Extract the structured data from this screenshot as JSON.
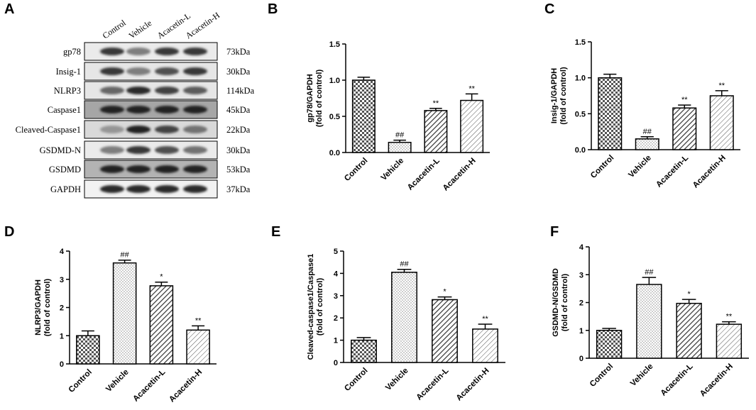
{
  "figure": {
    "panels": [
      "A",
      "B",
      "C",
      "D",
      "E",
      "F"
    ]
  },
  "western_blot": {
    "lanes": [
      "Control",
      "Vehicle",
      "Acacetin-L",
      "Acacetin-H"
    ],
    "rows": [
      {
        "protein": "gp78",
        "kda": "73kDa",
        "intensity": [
          0.85,
          0.55,
          0.85,
          0.85
        ],
        "bg": 0.08
      },
      {
        "protein": "Insig-1",
        "kda": "30kDa",
        "intensity": [
          0.85,
          0.55,
          0.75,
          0.85
        ],
        "bg": 0.1
      },
      {
        "protein": "NLRP3",
        "kda": "114kDa",
        "intensity": [
          0.65,
          0.9,
          0.8,
          0.7
        ],
        "bg": 0.1
      },
      {
        "protein": "Caspase1",
        "kda": "45kDa",
        "intensity": [
          0.95,
          0.95,
          0.95,
          0.95
        ],
        "bg": 0.35
      },
      {
        "protein": "Cleaved-Caspase1",
        "kda": "22kDa",
        "intensity": [
          0.45,
          0.95,
          0.8,
          0.6
        ],
        "bg": 0.15
      },
      {
        "protein": "GSDMD-N",
        "kda": "30kDa",
        "intensity": [
          0.55,
          0.85,
          0.75,
          0.6
        ],
        "bg": 0.08
      },
      {
        "protein": "GSDMD",
        "kda": "53kDa",
        "intensity": [
          0.95,
          0.95,
          0.95,
          0.95
        ],
        "bg": 0.3
      },
      {
        "protein": "GAPDH",
        "kda": "37kDa",
        "intensity": [
          0.9,
          0.9,
          0.9,
          0.9
        ],
        "bg": 0.05
      }
    ]
  },
  "chart_data": [
    {
      "panel": "B",
      "type": "bar",
      "categories": [
        "Control",
        "Vehicle",
        "Acacetin-L",
        "Acacetin-H"
      ],
      "values": [
        1.0,
        0.14,
        0.58,
        0.72
      ],
      "errors": [
        0.04,
        0.03,
        0.03,
        0.09
      ],
      "significance": [
        "",
        "##",
        "**",
        "**"
      ],
      "ylabel": [
        "gp78/GAPDH",
        "(fold of control)"
      ],
      "ylim": [
        0,
        1.5
      ],
      "yticks": [
        "0.0",
        "0.5",
        "1.0",
        "1.5"
      ]
    },
    {
      "panel": "C",
      "type": "bar",
      "categories": [
        "Control",
        "Vehicle",
        "Acacetin-L",
        "Acacetin-H"
      ],
      "values": [
        1.0,
        0.15,
        0.58,
        0.75
      ],
      "errors": [
        0.05,
        0.03,
        0.04,
        0.07
      ],
      "significance": [
        "",
        "##",
        "**",
        "**"
      ],
      "ylabel": [
        "Insig-1/GAPDH",
        "(fold of control)"
      ],
      "ylim": [
        0,
        1.5
      ],
      "yticks": [
        "0.0",
        "0.5",
        "1.0",
        "1.5"
      ]
    },
    {
      "panel": "D",
      "type": "bar",
      "categories": [
        "Control",
        "Vehicle",
        "Acacetin-L",
        "Acacetin-H"
      ],
      "values": [
        1.0,
        3.58,
        2.77,
        1.2
      ],
      "errors": [
        0.17,
        0.1,
        0.13,
        0.15
      ],
      "significance": [
        "",
        "##",
        "*",
        "**"
      ],
      "ylabel": [
        "NLRP3/GAPDH",
        "(fold of control)"
      ],
      "ylim": [
        0,
        4
      ],
      "yticks": [
        "0",
        "1",
        "2",
        "3",
        "4"
      ]
    },
    {
      "panel": "E",
      "type": "bar",
      "categories": [
        "Control",
        "Vehicle",
        "Acacetin-L",
        "Acacetin-H"
      ],
      "values": [
        1.0,
        4.05,
        2.82,
        1.5
      ],
      "errors": [
        0.12,
        0.13,
        0.12,
        0.22
      ],
      "significance": [
        "",
        "##",
        "*",
        "**"
      ],
      "ylabel": [
        "Cleaved-caspase1/Caspase1",
        "(fold of control)"
      ],
      "ylim": [
        0,
        5
      ],
      "yticks": [
        "0",
        "1",
        "2",
        "3",
        "4",
        "5"
      ]
    },
    {
      "panel": "F",
      "type": "bar",
      "categories": [
        "Control",
        "Vehicle",
        "Acacetin-L",
        "Acacetin-H"
      ],
      "values": [
        1.0,
        2.65,
        1.97,
        1.22
      ],
      "errors": [
        0.07,
        0.25,
        0.14,
        0.09
      ],
      "significance": [
        "",
        "##",
        "*",
        "**"
      ],
      "ylabel": [
        "GSDMD-N/GSDMD",
        "(fold of control)"
      ],
      "ylim": [
        0,
        4
      ],
      "yticks": [
        "0",
        "1",
        "2",
        "3",
        "4"
      ]
    }
  ]
}
